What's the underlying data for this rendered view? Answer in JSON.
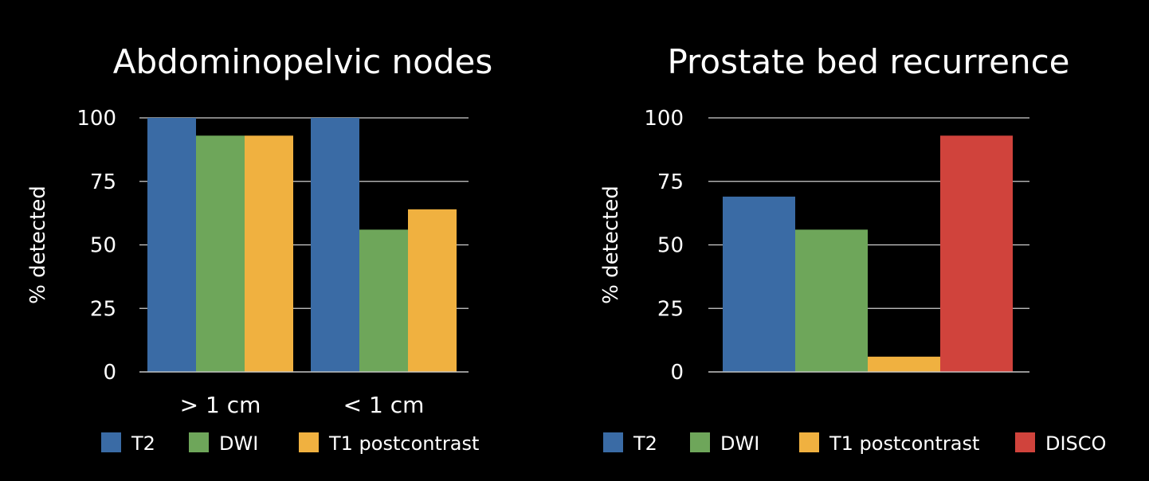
{
  "chart_data": [
    {
      "type": "bar",
      "title": "Abdominopelvic nodes",
      "ylabel": "% detected",
      "ylim": [
        0,
        100
      ],
      "yticks": [
        0,
        25,
        50,
        75,
        100
      ],
      "grid": true,
      "legend_position": "bottom",
      "categories": [
        "> 1 cm",
        "< 1 cm"
      ],
      "series": [
        {
          "name": "T2",
          "color": "#3A6BA5",
          "values": [
            100,
            100
          ]
        },
        {
          "name": "DWI",
          "color": "#6EA65A",
          "values": [
            93,
            56
          ]
        },
        {
          "name": "T1 postcontrast",
          "color": "#F0B140",
          "values": [
            93,
            64
          ]
        }
      ]
    },
    {
      "type": "bar",
      "title": "Prostate bed recurrence",
      "ylabel": "% detected",
      "ylim": [
        0,
        100
      ],
      "yticks": [
        0,
        25,
        50,
        75,
        100
      ],
      "grid": true,
      "legend_position": "bottom",
      "categories": [
        ""
      ],
      "series": [
        {
          "name": "T2",
          "color": "#3A6BA5",
          "values": [
            69
          ]
        },
        {
          "name": "DWI",
          "color": "#6EA65A",
          "values": [
            56
          ]
        },
        {
          "name": "T1 postcontrast",
          "color": "#F0B140",
          "values": [
            6
          ]
        },
        {
          "name": "DISCO",
          "color": "#D0433C",
          "values": [
            93
          ]
        }
      ]
    }
  ]
}
